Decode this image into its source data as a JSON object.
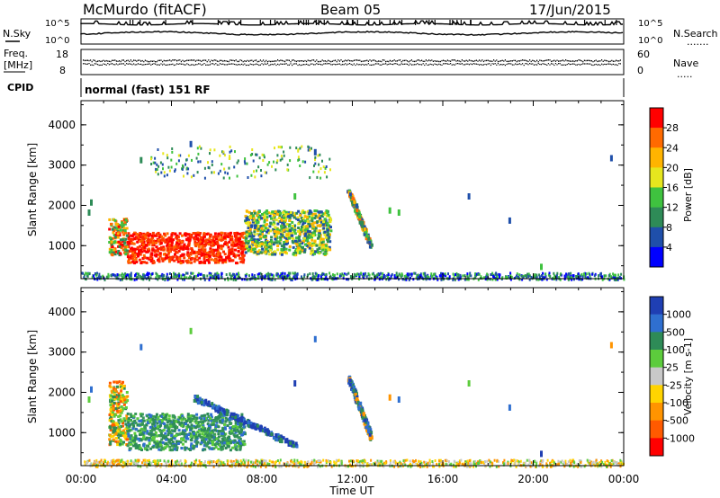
{
  "header": {
    "site_title": "McMurdo (fitACF)",
    "beam": "Beam 05",
    "date": "17/Jun/2015"
  },
  "status_panel": {
    "nsky_label": "N.Sky",
    "nsky_ticks": [
      "10^5",
      "10^0"
    ],
    "nsearch_label": "N.Search",
    "nsearch_ticks": [
      "10^5",
      "10^0"
    ],
    "freq_label": "Freq.",
    "freq_unit": "[MHz]",
    "freq_ticks": [
      "18",
      "8"
    ],
    "nave_label": "Nave",
    "nave_ticks": [
      "60",
      "0"
    ],
    "cpid_label": "CPID",
    "cpid_value": "normal (fast) 151 RF"
  },
  "chart_data": [
    {
      "type": "heatmap",
      "panel": "power",
      "ylabel": "Slant Range [km]",
      "y_ticks": [
        "1000",
        "2000",
        "3000",
        "4000"
      ],
      "ylim": [
        180,
        4600
      ],
      "x_ticks": [
        "00:00",
        "04:00",
        "08:00",
        "12:00",
        "16:00",
        "20:00",
        "00:00"
      ],
      "xlim_hours": [
        0,
        24
      ],
      "colorbar": {
        "label": "Power [dB]",
        "range": [
          0,
          32
        ],
        "tick_labels": [
          "28",
          "24",
          "20",
          "16",
          "12",
          "8",
          "4"
        ],
        "colors": [
          "#ff0000",
          "#ff6a00",
          "#ffb400",
          "#e6e61e",
          "#3fc23f",
          "#2e8b57",
          "#1f4faa",
          "#0000ff"
        ]
      },
      "echo_regions": [
        {
          "t0": 2.0,
          "t1": 7.2,
          "r0": 600,
          "r1": 1350,
          "value": "red"
        },
        {
          "t0": 1.2,
          "t1": 2.0,
          "r0": 800,
          "r1": 1700,
          "value": "orange/green"
        },
        {
          "t0": 7.2,
          "t1": 11.0,
          "r0": 800,
          "r1": 1900,
          "value": "green/blue"
        },
        {
          "t0": 11.8,
          "t1": 12.8,
          "r0": 1000,
          "r1": 2400,
          "value": "orange/blue streak"
        },
        {
          "t0": 3.0,
          "t1": 11.0,
          "r0": 2700,
          "r1": 3500,
          "value": "sparse"
        },
        {
          "t0": 0.0,
          "t1": 24.0,
          "r0": 180,
          "r1": 350,
          "value": "ground scatter"
        }
      ]
    },
    {
      "type": "heatmap",
      "panel": "velocity",
      "ylabel": "Slant Range [km]",
      "y_ticks": [
        "1000",
        "2000",
        "3000",
        "4000"
      ],
      "ylim": [
        180,
        4600
      ],
      "x_ticks": [
        "00:00",
        "04:00",
        "08:00",
        "12:00",
        "16:00",
        "20:00",
        "00:00"
      ],
      "xlabel": "Time UT",
      "xlim_hours": [
        0,
        24
      ],
      "colorbar": {
        "label": "Velocity [m s-1]",
        "tick_labels": [
          "1000",
          "500",
          "100",
          "25",
          "-25",
          "-100",
          "-500",
          "-1000"
        ],
        "colors": [
          "#1f3fb3",
          "#2f6fd0",
          "#2e8b57",
          "#5ccc3c",
          "#c8c8c8",
          "#ffd400",
          "#ff9400",
          "#ff5a00",
          "#ff0000"
        ]
      },
      "echo_regions": [
        {
          "t0": 1.2,
          "t1": 2.0,
          "r0": 700,
          "r1": 2300,
          "value": "orange/green"
        },
        {
          "t0": 2.0,
          "t1": 7.2,
          "r0": 600,
          "r1": 1500,
          "value": "green"
        },
        {
          "t0": 5.0,
          "t1": 9.5,
          "r0": 700,
          "r1": 1900,
          "value": "blue streaks"
        },
        {
          "t0": 11.8,
          "t1": 12.8,
          "r0": 900,
          "r1": 2400,
          "value": "blue/orange streak"
        },
        {
          "t0": 0.0,
          "t1": 24.0,
          "r0": 180,
          "r1": 350,
          "value": "ground scatter (low velocity)"
        }
      ]
    }
  ]
}
